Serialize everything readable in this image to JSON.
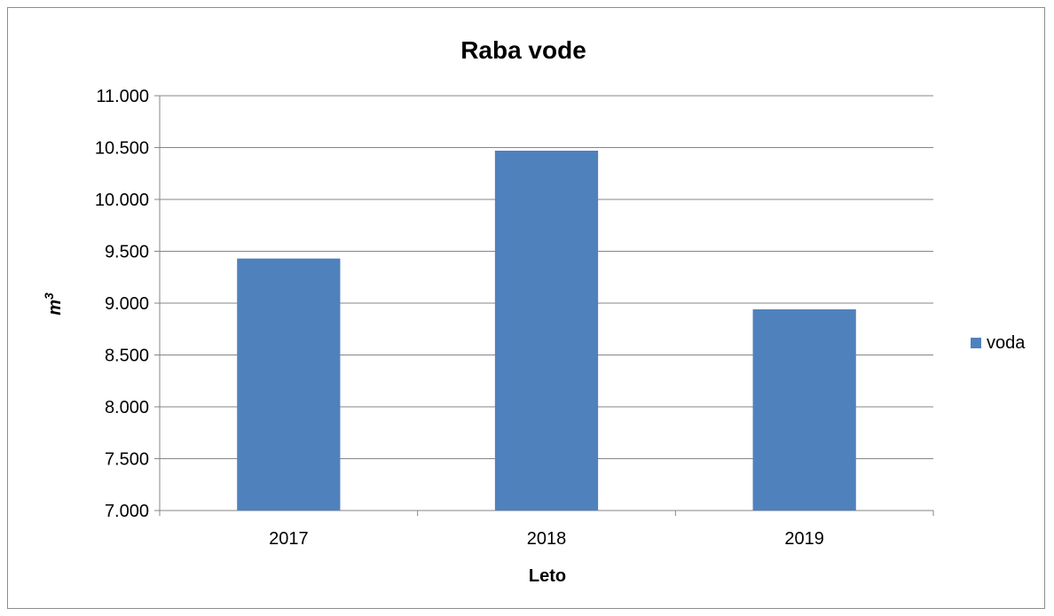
{
  "chart_data": {
    "type": "bar",
    "title": "Raba vode",
    "xlabel": "Leto",
    "ylabel": "m",
    "ylabel_superscript": "3",
    "categories": [
      "2017",
      "2018",
      "2019"
    ],
    "series": [
      {
        "name": "voda",
        "values": [
          9430,
          10470,
          8940
        ],
        "color": "#4f81bd"
      }
    ],
    "ylim": [
      7000,
      11000
    ],
    "yticks": [
      {
        "value": 7000,
        "label": "7.000"
      },
      {
        "value": 7500,
        "label": "7.500"
      },
      {
        "value": 8000,
        "label": "8.000"
      },
      {
        "value": 8500,
        "label": "8.500"
      },
      {
        "value": 9000,
        "label": "9.000"
      },
      {
        "value": 9500,
        "label": "9.500"
      },
      {
        "value": 10000,
        "label": "10.000"
      },
      {
        "value": 10500,
        "label": "10.500"
      },
      {
        "value": 11000,
        "label": "11.000"
      }
    ],
    "grid": true,
    "legend_position": "right"
  }
}
